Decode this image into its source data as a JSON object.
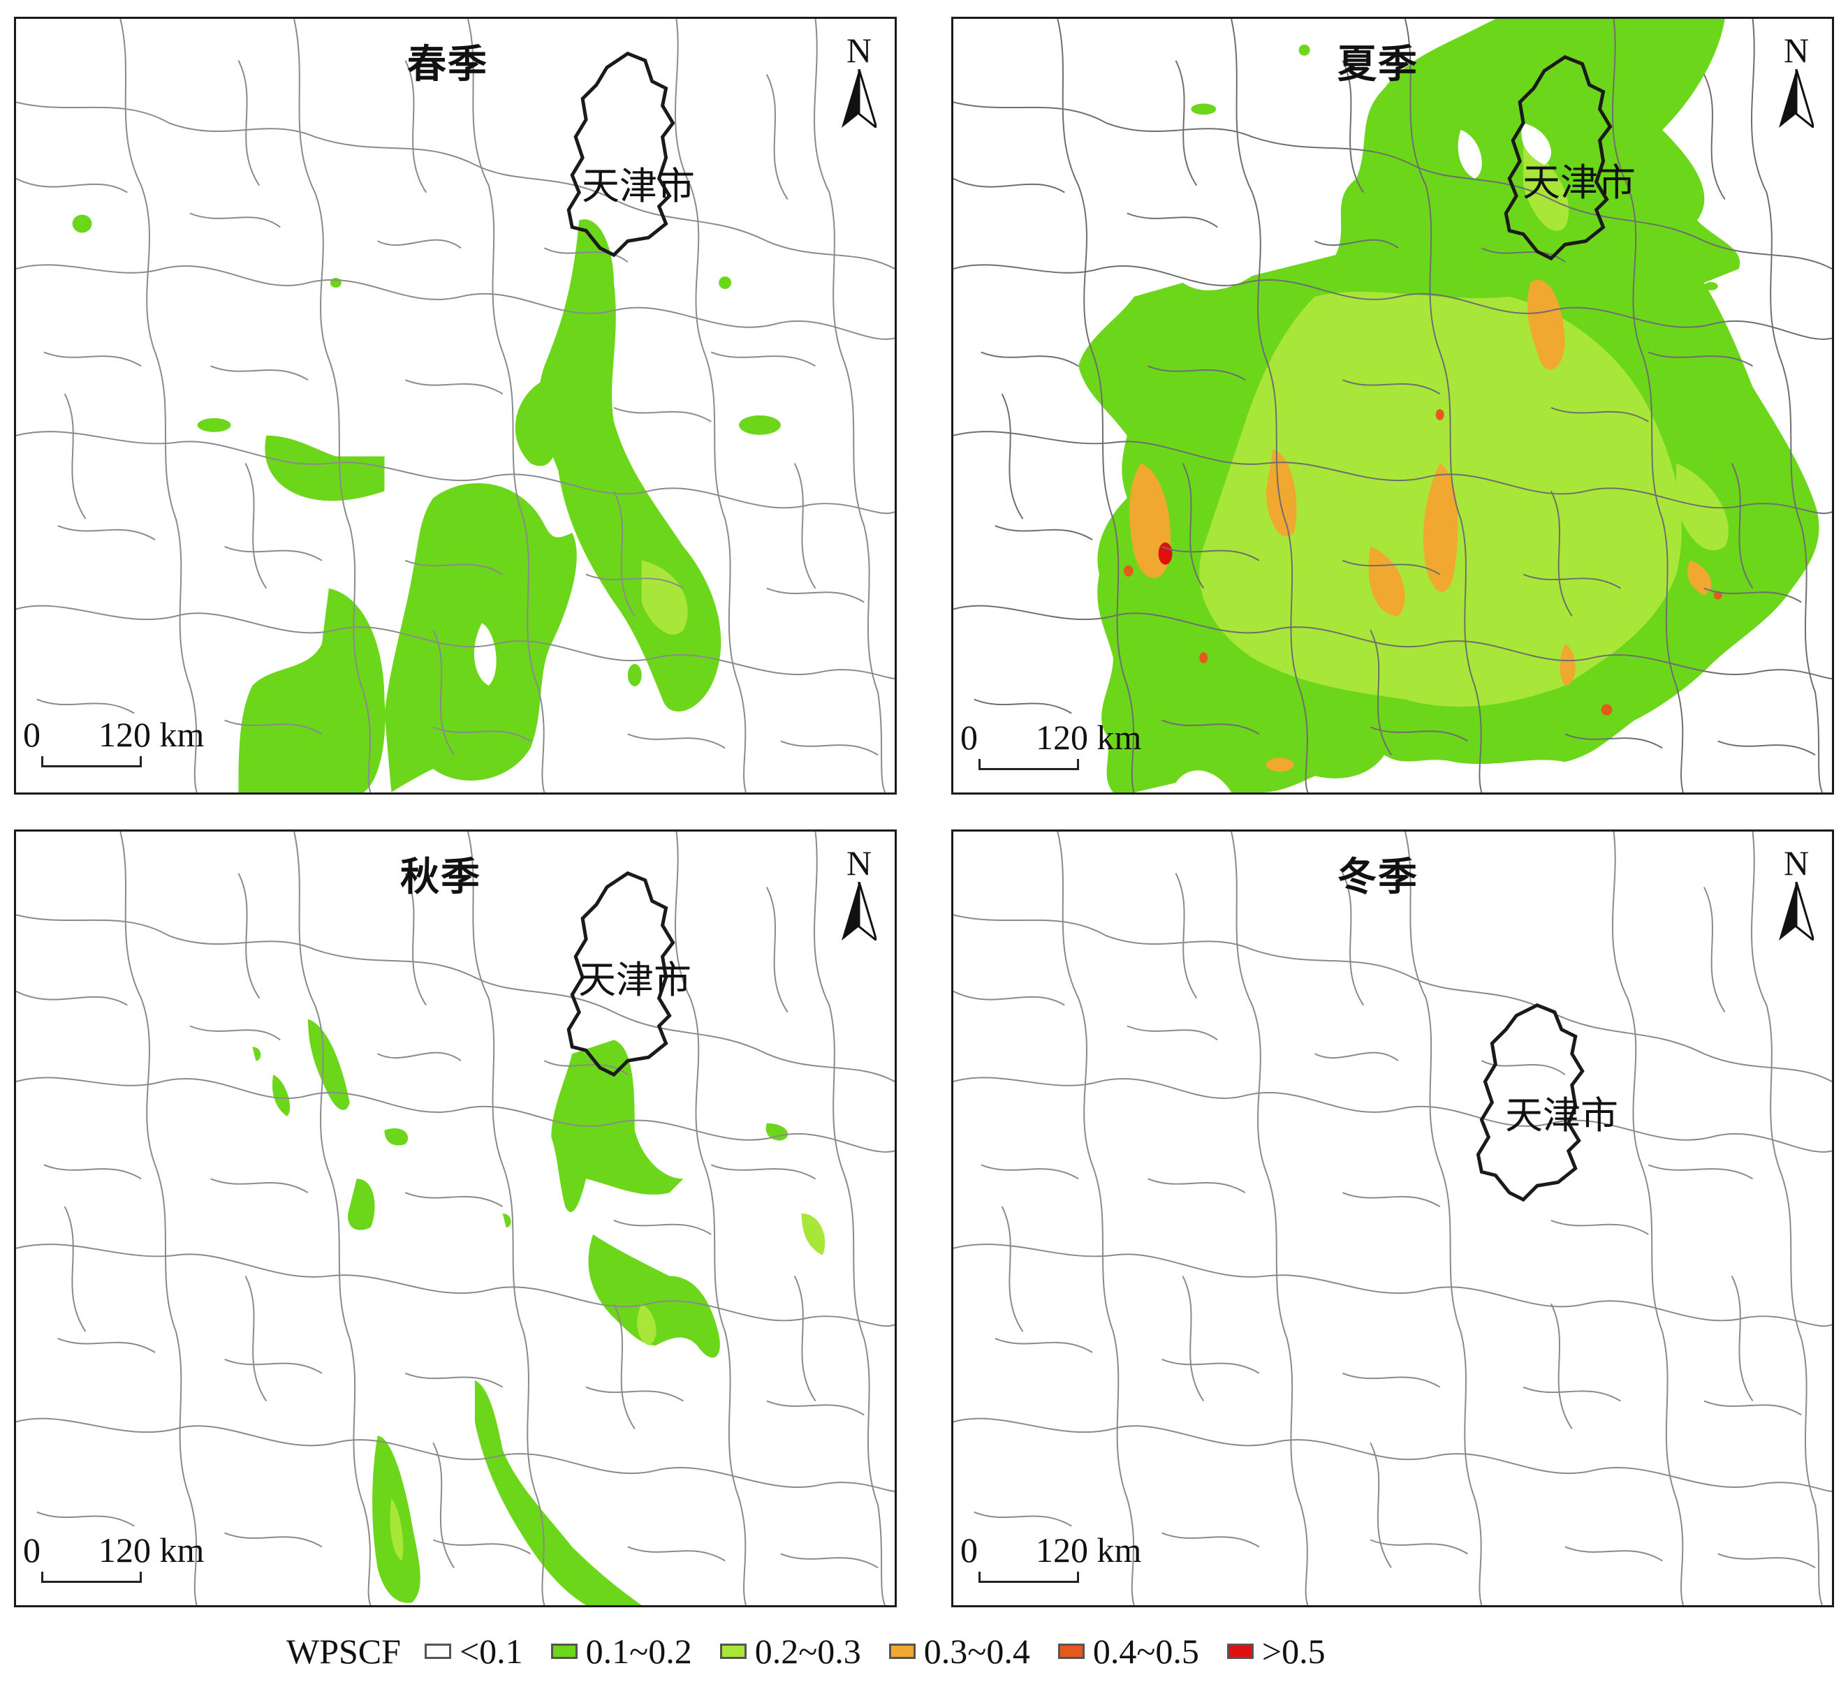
{
  "panels": [
    {
      "id": "spring",
      "title": "春季",
      "city": "天津市",
      "north": "N",
      "scale_zero": "0",
      "scale_dist": "120 km"
    },
    {
      "id": "summer",
      "title": "夏季",
      "city": "天津市",
      "north": "N",
      "scale_zero": "0",
      "scale_dist": "120 km"
    },
    {
      "id": "autumn",
      "title": "秋季",
      "city": "天津市",
      "north": "N",
      "scale_zero": "0",
      "scale_dist": "120 km"
    },
    {
      "id": "winter",
      "title": "冬季",
      "city": "天津市",
      "north": "N",
      "scale_zero": "0",
      "scale_dist": "120 km"
    }
  ],
  "legend": {
    "title": "WPSCF",
    "items": [
      {
        "label": "<0.1",
        "color": "#ffffff"
      },
      {
        "label": "0.1~0.2",
        "color": "#6cd61b"
      },
      {
        "label": "0.2~0.3",
        "color": "#a8e63a"
      },
      {
        "label": "0.3~0.4",
        "color": "#f0a830"
      },
      {
        "label": "0.4~0.5",
        "color": "#e35a1c"
      },
      {
        "label": ">0.5",
        "color": "#e01010"
      }
    ]
  },
  "colors": {
    "boundary": "#8a8a8a",
    "city_outline": "#1a1a1a"
  }
}
